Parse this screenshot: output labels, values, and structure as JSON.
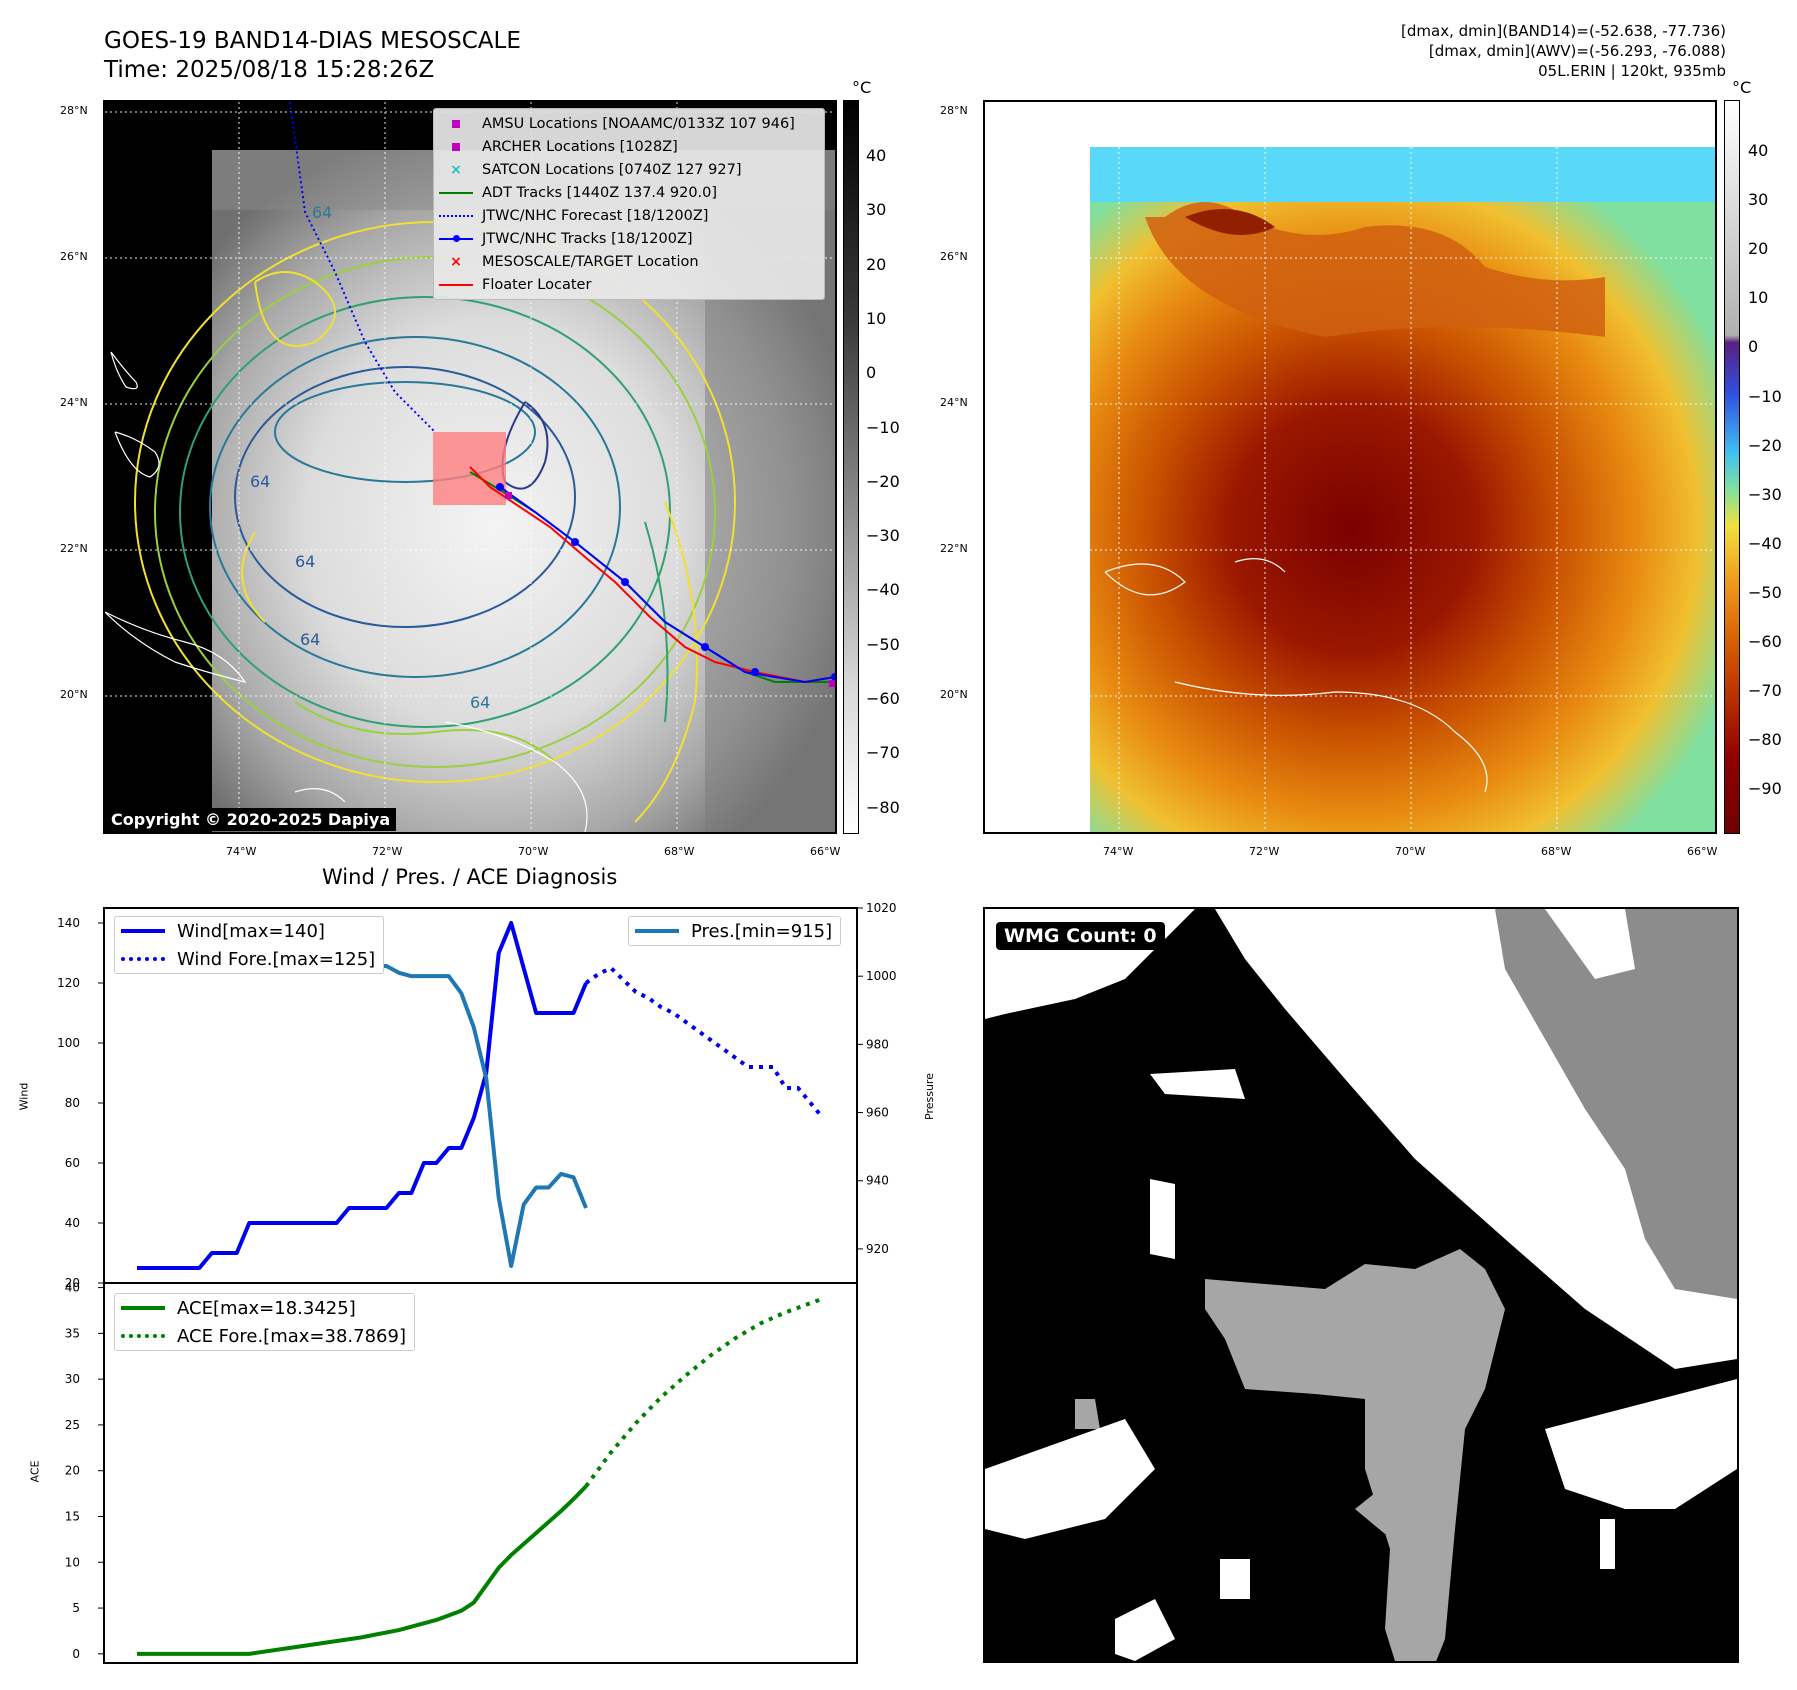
{
  "header": {
    "title_line1": "GOES-19 BAND14-DIAS MESOSCALE",
    "title_line2": "Time: 2025/08/18 15:28:26Z",
    "info_line1": "[dmax, dmin](BAND14)=(-52.638, -77.736)",
    "info_line2": "[dmax, dmin](AWV)=(-56.293, -76.088)",
    "info_line3": "05L.ERIN | 120kt, 935mb"
  },
  "map_axes": {
    "lat_labels": [
      "28°N",
      "26°N",
      "24°N",
      "22°N",
      "20°N"
    ],
    "lon_labels": [
      "74°W",
      "72°W",
      "70°W",
      "68°W",
      "66°W"
    ]
  },
  "ir_panel": {
    "colorbar_unit": "°C",
    "colorbar_ticks": [
      "40",
      "30",
      "20",
      "10",
      "0",
      "−10",
      "−20",
      "−30",
      "−40",
      "−50",
      "−60",
      "−70",
      "−80"
    ],
    "contour_label": "64",
    "copyright": "Copyright © 2020-2025 Dapiya",
    "legend": [
      {
        "label": "AMSU Locations [NOAAMC/0133Z 107 946]",
        "marker": "square",
        "color": "#c000c0"
      },
      {
        "label": "ARCHER Locations [1028Z]",
        "marker": "square",
        "color": "#c000c0"
      },
      {
        "label": "SATCON Locations [0740Z 127 927]",
        "marker": "x",
        "color": "#20c0c0"
      },
      {
        "label": "ADT Tracks [1440Z 137.4 920.0]",
        "marker": "line",
        "color": "#008000"
      },
      {
        "label": "JTWC/NHC Forecast [18/1200Z]",
        "marker": "dotted",
        "color": "#0000ff"
      },
      {
        "label": "JTWC/NHC Tracks [18/1200Z]",
        "marker": "line-dot",
        "color": "#0000ff"
      },
      {
        "label": "MESOSCALE/TARGET Location",
        "marker": "x",
        "color": "#ff0000"
      },
      {
        "label": "Floater Locater",
        "marker": "line",
        "color": "#ff0000"
      }
    ]
  },
  "color_panel": {
    "colorbar_unit": "°C",
    "colorbar_ticks": [
      "40",
      "30",
      "20",
      "10",
      "0",
      "−10",
      "−20",
      "−30",
      "−40",
      "−50",
      "−60",
      "−70",
      "−80",
      "−90"
    ]
  },
  "wmg_panel": {
    "label": "WMG Count: 0"
  },
  "chart_data": [
    {
      "type": "line",
      "title": "Wind / Pres. / ACE Diagnosis",
      "ylabel": "Wind",
      "ylabel_right": "Pressure",
      "ylim": [
        20,
        145
      ],
      "ylim_right": [
        910,
        1020
      ],
      "yticks": [
        20,
        40,
        60,
        80,
        100,
        120,
        140
      ],
      "yticks_right": [
        920,
        940,
        960,
        980,
        1000,
        1020
      ],
      "series": [
        {
          "name": "Wind[max=140]",
          "axis": "left",
          "style": "solid",
          "color": "#0000ee",
          "x": [
            0,
            1,
            2,
            3,
            4,
            5,
            6,
            7,
            8,
            9,
            10,
            11,
            12,
            13,
            14,
            15,
            16,
            17,
            18,
            19,
            20,
            21,
            22,
            23,
            24,
            25,
            26,
            27,
            28,
            29,
            30,
            31,
            32,
            33,
            34,
            35,
            36
          ],
          "values": [
            25,
            25,
            25,
            25,
            25,
            25,
            30,
            30,
            30,
            40,
            40,
            40,
            40,
            40,
            40,
            40,
            40,
            45,
            45,
            45,
            45,
            50,
            50,
            60,
            60,
            65,
            65,
            75,
            90,
            130,
            140,
            125,
            110,
            110,
            110,
            110,
            120
          ]
        },
        {
          "name": "Wind Fore.[max=125]",
          "axis": "left",
          "style": "dotted",
          "color": "#0000ee",
          "x": [
            36,
            37,
            38,
            39,
            40,
            41,
            42,
            43,
            44,
            45,
            46,
            47,
            48,
            49,
            50,
            51,
            52,
            53,
            54,
            55
          ],
          "values": [
            120,
            123,
            125,
            121,
            117,
            115,
            112,
            110,
            107,
            104,
            101,
            98,
            95,
            92,
            92,
            92,
            85,
            85,
            80,
            75
          ]
        },
        {
          "name": "Pres.[min=915]",
          "axis": "right",
          "style": "solid",
          "color": "#1f77b4",
          "x": [
            0,
            1,
            2,
            3,
            4,
            5,
            6,
            7,
            8,
            9,
            10,
            11,
            12,
            13,
            14,
            15,
            16,
            17,
            18,
            19,
            20,
            21,
            22,
            23,
            24,
            25,
            26,
            27,
            28,
            29,
            30,
            31,
            32,
            33,
            34,
            35,
            36
          ],
          "values": [
            1013,
            1013,
            1008,
            1007,
            1006,
            1006,
            1006,
            1005,
            1005,
            1005,
            1005,
            1006,
            1006,
            1005,
            1005,
            1005,
            1003,
            1003,
            1003,
            1003,
            1003,
            1001,
            1000,
            1000,
            1000,
            1000,
            995,
            985,
            970,
            935,
            915,
            933,
            938,
            938,
            942,
            941,
            932
          ]
        }
      ]
    },
    {
      "type": "line",
      "ylabel": "ACE",
      "ylim": [
        -1,
        40.5
      ],
      "yticks": [
        0,
        5,
        10,
        15,
        20,
        25,
        30,
        35,
        40
      ],
      "series": [
        {
          "name": "ACE[max=18.3425]",
          "style": "solid",
          "color": "#008000",
          "x": [
            0,
            9,
            12,
            15,
            18,
            21,
            24,
            26,
            27,
            28,
            29,
            30,
            31,
            32,
            33,
            34,
            35,
            36
          ],
          "values": [
            0,
            0,
            0.6,
            1.2,
            1.8,
            2.6,
            3.7,
            4.7,
            5.6,
            7.5,
            9.4,
            10.8,
            12.0,
            13.2,
            14.4,
            15.6,
            16.9,
            18.3
          ]
        },
        {
          "name": "ACE Fore.[max=38.7869]",
          "style": "dotted",
          "color": "#008000",
          "x": [
            36,
            38,
            40,
            42,
            44,
            46,
            48,
            50,
            52,
            54,
            55
          ],
          "values": [
            18.3,
            22.0,
            25.2,
            28.0,
            30.4,
            32.6,
            34.5,
            36.1,
            37.3,
            38.3,
            38.8
          ]
        }
      ]
    }
  ]
}
